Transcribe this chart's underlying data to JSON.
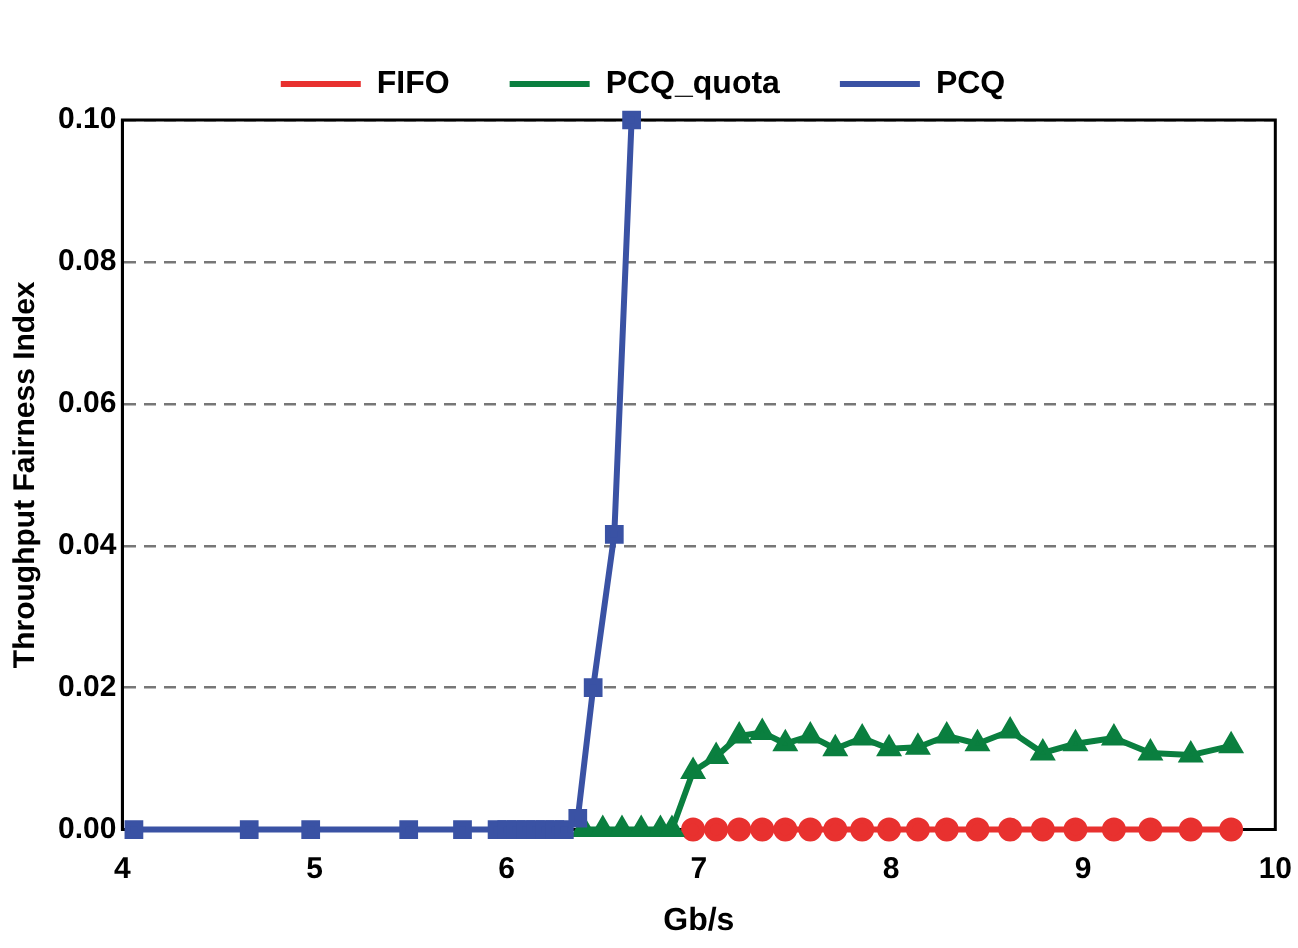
{
  "chart_data": {
    "type": "line",
    "xlabel": "Gb/s",
    "ylabel": "Throughput Fairness Index",
    "xlim": [
      4,
      10
    ],
    "xticks": [
      4,
      5,
      6,
      7,
      8,
      9,
      10
    ],
    "ylim": [
      0,
      0.1
    ],
    "yticks": [
      {
        "value": 0,
        "label": "0.00"
      },
      {
        "value": 0.02,
        "label": "0.02"
      },
      {
        "value": 0.04,
        "label": "0.04"
      },
      {
        "value": 0.06,
        "label": "0.06"
      },
      {
        "value": 0.08,
        "label": "0.08"
      },
      {
        "value": 0.1,
        "label": "0.10"
      }
    ],
    "grid": "y",
    "line_style": "solid",
    "legend": "top",
    "series": [
      {
        "name": "FIFO",
        "color": "#e8312f",
        "marker": "circle",
        "x": [
          6.97,
          7.09,
          7.21,
          7.33,
          7.45,
          7.58,
          7.71,
          7.85,
          7.99,
          8.14,
          8.29,
          8.45,
          8.62,
          8.79,
          8.96,
          9.16,
          9.35,
          9.56,
          9.77
        ],
        "values": [
          0,
          0,
          0,
          0,
          0,
          0,
          0,
          0,
          0,
          0,
          0,
          0,
          0,
          0,
          0,
          0,
          0,
          0,
          0
        ]
      },
      {
        "name": "PCQ_quota",
        "color": "#0a7f3f",
        "marker": "triangle",
        "x": [
          6.4,
          6.5,
          6.6,
          6.7,
          6.8,
          6.86,
          6.97,
          7.09,
          7.21,
          7.33,
          7.45,
          7.58,
          7.71,
          7.85,
          7.99,
          8.14,
          8.29,
          8.45,
          8.62,
          8.79,
          8.96,
          9.16,
          9.35,
          9.56,
          9.77
        ],
        "values": [
          0,
          0,
          0,
          0,
          0,
          0,
          0.0082,
          0.0103,
          0.0132,
          0.0137,
          0.0121,
          0.0132,
          0.0114,
          0.0129,
          0.0114,
          0.0116,
          0.0132,
          0.0121,
          0.0139,
          0.0108,
          0.0121,
          0.0129,
          0.0108,
          0.0105,
          0.0118
        ]
      },
      {
        "name": "PCQ",
        "color": "#3a52a4",
        "marker": "square",
        "x": [
          4.06,
          4.66,
          4.98,
          5.49,
          5.77,
          5.95,
          6.0,
          6.05,
          6.1,
          6.15,
          6.2,
          6.25,
          6.3,
          6.37,
          6.45,
          6.56,
          6.65
        ],
        "values": [
          0,
          0,
          0,
          0,
          0,
          0,
          0,
          0,
          0,
          0,
          0,
          0,
          0,
          0.0016,
          0.02,
          0.0416,
          0.1
        ]
      }
    ]
  }
}
